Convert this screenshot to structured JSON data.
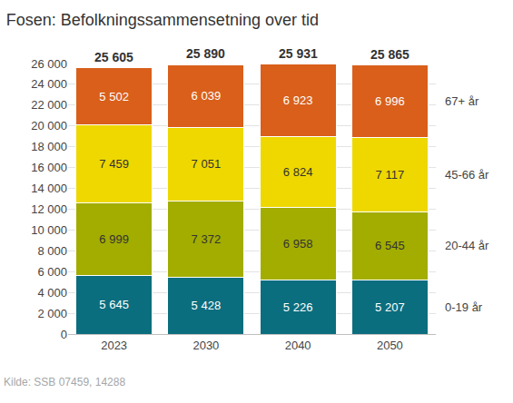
{
  "chart_data": {
    "type": "bar",
    "title": "Fosen: Befolkningssammensetning over tid",
    "source": "Kilde: SSB 07459, 14288",
    "categories": [
      "2023",
      "2030",
      "2040",
      "2050"
    ],
    "stacked": true,
    "data_labels": true,
    "grid": true,
    "series": [
      {
        "name": "0-19 år",
        "color": "#0b6e7e",
        "values": [
          5645,
          5428,
          5226,
          5207
        ],
        "value_labels": [
          "5 645",
          "5 428",
          "5 226",
          "5 207"
        ]
      },
      {
        "name": "20-44 år",
        "color": "#a2ad00",
        "values": [
          6999,
          7372,
          6958,
          6545
        ],
        "value_labels": [
          "6 999",
          "7 372",
          "6 958",
          "6 545"
        ]
      },
      {
        "name": "45-66 år",
        "color": "#eed800",
        "values": [
          7459,
          7051,
          6824,
          7117
        ],
        "value_labels": [
          "7 459",
          "7 051",
          "6 824",
          "7 117"
        ]
      },
      {
        "name": "67+ år",
        "color": "#d95f1b",
        "values": [
          5502,
          6039,
          6923,
          6996
        ],
        "value_labels": [
          "5 502",
          "6 039",
          "6 923",
          "6 996"
        ]
      }
    ],
    "totals": {
      "values": [
        25605,
        25890,
        25931,
        25865
      ],
      "value_labels": [
        "25 605",
        "25 890",
        "25 931",
        "25 865"
      ]
    },
    "ylim": [
      0,
      26000
    ],
    "yticks": [
      0,
      {
        "value": 2000,
        "label": "2 000"
      },
      {
        "value": 4000,
        "label": "4 000"
      },
      {
        "value": 6000,
        "label": "6 000"
      },
      {
        "value": 8000,
        "label": "8 000"
      },
      {
        "value": 10000,
        "label": "10 000"
      },
      {
        "value": 12000,
        "label": "12 000"
      },
      {
        "value": 14000,
        "label": "14 000"
      },
      {
        "value": 16000,
        "label": "16 000"
      },
      {
        "value": 18000,
        "label": "18 000"
      },
      {
        "value": 20000,
        "label": "20 000"
      },
      {
        "value": 22000,
        "label": "22 000"
      },
      {
        "value": 24000,
        "label": "24 000"
      },
      {
        "value": 26000,
        "label": "26 000"
      }
    ]
  }
}
